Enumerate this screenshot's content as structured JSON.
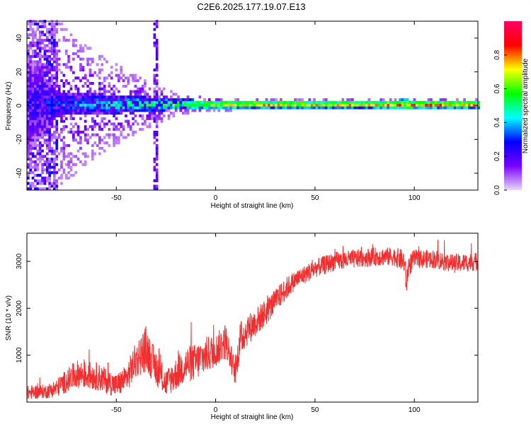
{
  "title": "C2E6.2025.177.19.07.E13",
  "colors": {
    "snr_line": "#f03030",
    "plot_border": "#000000"
  },
  "chart_data": [
    {
      "type": "heatmap",
      "xlabel": "Height of straight line (km)",
      "ylabel": "Frequency (Hz)",
      "xlim": [
        -95,
        132
      ],
      "ylim": [
        -50,
        50
      ],
      "xticks": [
        -50,
        0,
        50,
        100
      ],
      "xtick_labels": [
        "-50",
        "0",
        "50",
        "100"
      ],
      "yticks": [
        -40,
        -20,
        0,
        20,
        40
      ],
      "ytick_labels": [
        "-40",
        "-20",
        "0",
        "20",
        "40"
      ],
      "colorbar": {
        "label": "Normalized spectral amplitude",
        "range": [
          0,
          1
        ],
        "ticks": [
          0.0,
          0.2,
          0.4,
          0.6,
          0.8
        ],
        "tick_labels": [
          "0.0",
          "0.2",
          "0.4",
          "0.6",
          "0.8"
        ],
        "colormap": [
          "#e8d8f8",
          "#7a00ff",
          "#0000ff",
          "#00ffff",
          "#00ff00",
          "#ffff00",
          "#ff0000",
          "#ff0066"
        ]
      },
      "description_profile": {
        "x_knots": [
          -95,
          -80,
          -60,
          -45,
          -30,
          -20,
          0,
          20,
          50,
          80,
          95,
          100,
          132
        ],
        "center_amplitude": [
          0.25,
          0.35,
          0.45,
          0.55,
          0.6,
          0.7,
          0.75,
          0.85,
          0.85,
          0.85,
          0.85,
          0.9,
          0.9
        ],
        "band_halfwidth_hz": [
          30,
          7,
          6,
          5,
          4,
          3,
          2.5,
          2,
          2,
          2,
          3,
          2,
          2
        ],
        "scatter_halfwidth_hz": [
          50,
          50,
          30,
          20,
          12,
          6,
          4,
          3,
          3,
          3,
          3,
          3,
          3
        ]
      }
    },
    {
      "type": "line",
      "xlabel": "Height of straight line (km)",
      "ylabel": "SNR (10 * v/v)",
      "xlim": [
        -95,
        132
      ],
      "ylim": [
        0,
        3600
      ],
      "xticks": [
        -50,
        0,
        50,
        100
      ],
      "xtick_labels": [
        "-50",
        "0",
        "50",
        "100"
      ],
      "yticks": [
        1000,
        2000,
        3000
      ],
      "ytick_labels": [
        "1000",
        "2000",
        "3000"
      ],
      "series": [
        {
          "x": [
            -95,
            -85,
            -80,
            -75,
            -70,
            -60,
            -50,
            -45,
            -40,
            -35,
            -30,
            -25,
            -20,
            -15,
            -10,
            -5,
            0,
            5,
            8,
            10,
            12,
            15,
            20,
            25,
            30,
            35,
            40,
            50,
            60,
            70,
            80,
            90,
            95,
            96,
            97,
            100,
            110,
            120,
            132
          ],
          "values": [
            200,
            230,
            300,
            450,
            600,
            550,
            350,
            500,
            900,
            1150,
            700,
            400,
            600,
            800,
            850,
            1000,
            1100,
            1300,
            900,
            600,
            1300,
            1500,
            1700,
            1900,
            2150,
            2400,
            2600,
            2850,
            3000,
            3050,
            3100,
            3100,
            3000,
            2500,
            2900,
            3050,
            3050,
            2950,
            3000
          ],
          "noise_amplitude": [
            150,
            150,
            200,
            250,
            300,
            300,
            250,
            300,
            400,
            500,
            350,
            300,
            350,
            400,
            400,
            400,
            350,
            400,
            300,
            250,
            400,
            350,
            300,
            300,
            250,
            250,
            200,
            200,
            200,
            200,
            200,
            200,
            250,
            300,
            250,
            200,
            200,
            200,
            200
          ]
        }
      ]
    }
  ]
}
